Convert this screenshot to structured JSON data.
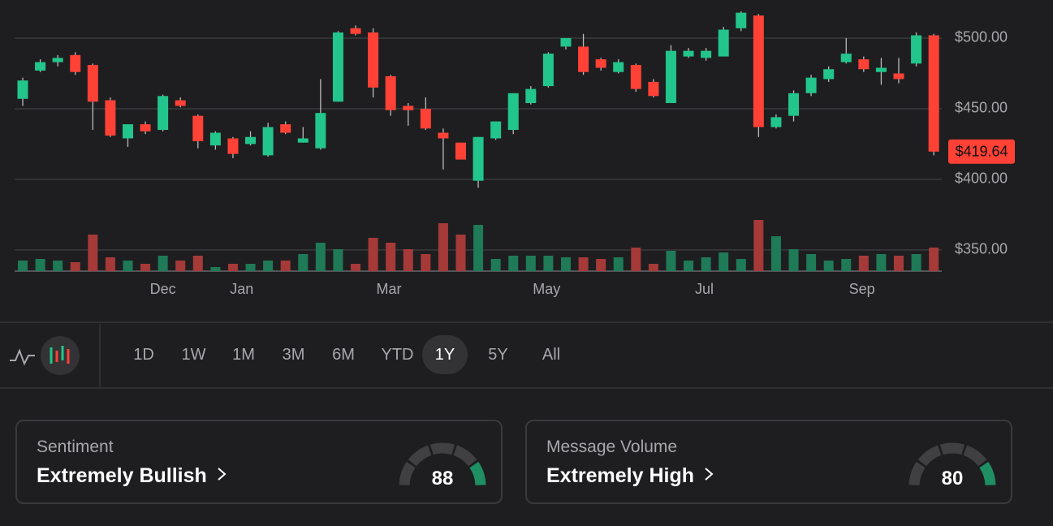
{
  "chart_data": {
    "type": "candlestick",
    "ylim": [
      335,
      527
    ],
    "yticks": [
      {
        "value": 500,
        "label": "$500.00"
      },
      {
        "value": 450,
        "label": "$450.00"
      },
      {
        "value": 400,
        "label": "$400.00"
      },
      {
        "value": 350,
        "label": "$350.00"
      }
    ],
    "xlim": [
      -0.5,
      52.5
    ],
    "xticks": [
      {
        "value": 8,
        "label": "Dec"
      },
      {
        "value": 12.5,
        "label": "Jan"
      },
      {
        "value": 20.9,
        "label": "Mar"
      },
      {
        "value": 29.9,
        "label": "May"
      },
      {
        "value": 38.9,
        "label": "Jul"
      },
      {
        "value": 47.9,
        "label": "Sep"
      }
    ],
    "up_color": "#22c58b",
    "down_color": "#ff4136",
    "volume_up_color": "#1f7a57",
    "volume_down_color": "#a53a38",
    "grid": true,
    "open": [
      457,
      477,
      483,
      488,
      481,
      456,
      429,
      439,
      435,
      456,
      445,
      424,
      429,
      425,
      417,
      439,
      426,
      422,
      455,
      507,
      504,
      473,
      452,
      450,
      433,
      426,
      399,
      429,
      435,
      454,
      466,
      494,
      494,
      485,
      476,
      481,
      469,
      454,
      487,
      486,
      487,
      507,
      516,
      437,
      445,
      461,
      471,
      483,
      485,
      476,
      475,
      482,
      502
    ],
    "high": [
      472,
      485,
      488,
      490,
      482,
      458,
      439,
      441,
      460,
      458,
      446,
      434,
      430,
      434,
      440,
      441,
      437,
      471,
      505,
      509,
      507,
      474,
      454,
      458,
      436,
      426,
      430,
      441,
      461,
      466,
      490,
      500,
      503,
      486,
      485,
      482,
      471,
      495,
      493,
      493,
      508,
      519,
      517,
      446,
      463,
      474,
      480,
      500,
      487,
      486,
      486,
      504,
      503
    ],
    "low": [
      452,
      476,
      480,
      474,
      435,
      430,
      423,
      432,
      434,
      451,
      422,
      421,
      415,
      424,
      416,
      432,
      426,
      421,
      455,
      502,
      458,
      445,
      438,
      435,
      407,
      414,
      394,
      428,
      432,
      453,
      465,
      492,
      474,
      477,
      475,
      462,
      458,
      454,
      486,
      484,
      487,
      505,
      430,
      436,
      441,
      459,
      469,
      482,
      476,
      467,
      468,
      480,
      417
    ],
    "close": [
      470,
      483,
      486,
      476,
      455,
      431,
      439,
      434,
      459,
      452,
      427,
      433,
      418,
      430,
      437,
      433,
      429,
      447,
      504,
      503,
      465,
      449,
      449,
      436,
      429,
      414,
      430,
      441,
      461,
      464,
      489,
      500,
      476,
      479,
      483,
      464,
      459,
      491,
      491,
      491,
      506,
      518,
      437,
      444,
      461,
      472,
      478,
      489,
      478,
      479,
      471,
      502,
      419.64
    ],
    "last_close_label": "$419.64",
    "volume_lim": [
      0,
      100
    ],
    "volume": [
      13,
      15,
      13,
      11,
      45,
      17,
      13,
      9,
      19,
      13,
      19,
      5,
      9,
      9,
      13,
      13,
      21,
      35,
      27,
      9,
      41,
      35,
      27,
      21,
      59,
      45,
      57,
      15,
      19,
      19,
      19,
      17,
      17,
      15,
      17,
      29,
      9,
      25,
      13,
      17,
      23,
      15,
      63,
      43,
      27,
      21,
      13,
      15,
      19,
      21,
      19,
      21,
      29
    ]
  },
  "toolbar": {
    "ranges": [
      "1D",
      "1W",
      "1M",
      "3M",
      "6M",
      "YTD",
      "1Y",
      "5Y",
      "All"
    ],
    "selected_index": 6
  },
  "cards": [
    {
      "label": "Sentiment",
      "value_text": "Extremely Bullish",
      "score": 88
    },
    {
      "label": "Message Volume",
      "value_text": "Extremely High",
      "score": 80
    }
  ],
  "gauge_lim": [
    0,
    100
  ]
}
